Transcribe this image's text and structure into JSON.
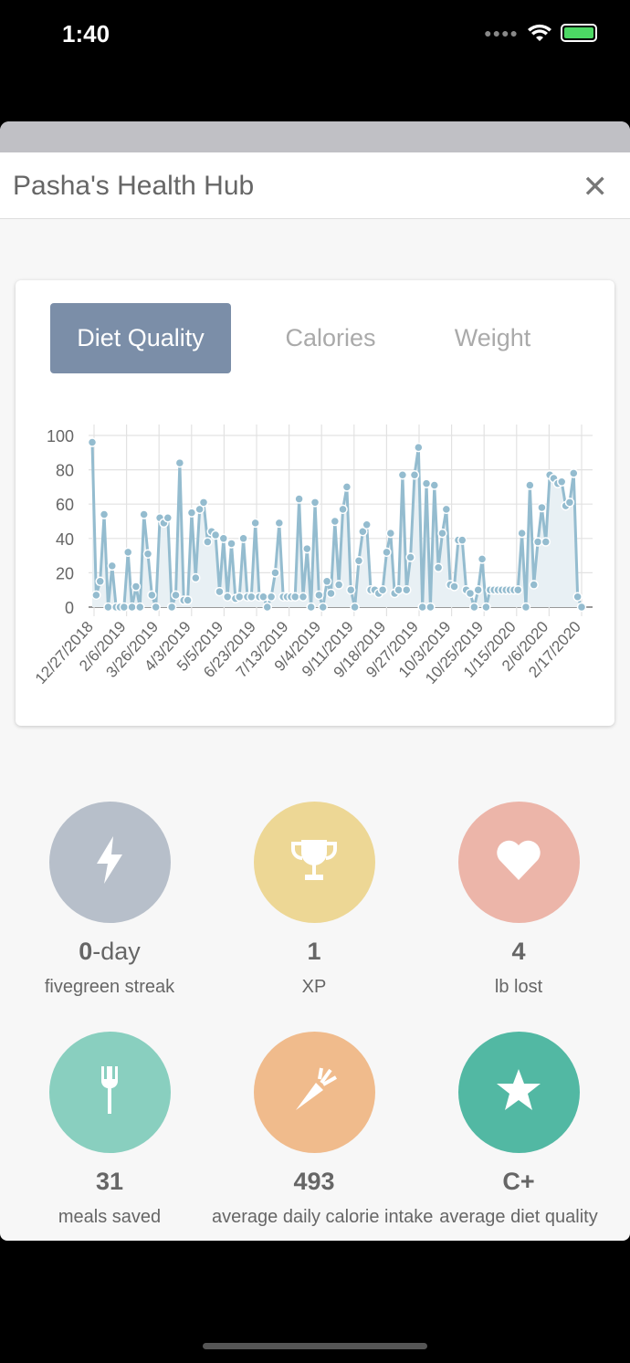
{
  "status_bar": {
    "time": "1:40"
  },
  "header": {
    "title": "Pasha's Health Hub",
    "close_icon": "close-icon"
  },
  "tabs": [
    {
      "label": "Diet Quality",
      "active": true
    },
    {
      "label": "Calories"
    },
    {
      "label": "Weight"
    }
  ],
  "colors": {
    "accent": "#7b8ea8",
    "line": "#94bccf"
  },
  "chart_data": {
    "type": "line",
    "title": "Diet Quality",
    "ylim": [
      0,
      100
    ],
    "yticks": [
      0,
      20,
      40,
      60,
      80,
      100
    ],
    "xticks": [
      "12/27/2018",
      "2/6/2019",
      "3/26/2019",
      "4/3/2019",
      "5/5/2019",
      "6/23/2019",
      "7/13/2019",
      "9/4/2019",
      "9/11/2019",
      "9/18/2019",
      "9/27/2019",
      "10/3/2019",
      "10/25/2019",
      "1/15/2020",
      "2/6/2020",
      "2/17/2020"
    ],
    "values": [
      96,
      7,
      15,
      54,
      0,
      24,
      0,
      0,
      0,
      32,
      0,
      12,
      0,
      54,
      31,
      7,
      0,
      52,
      49,
      52,
      0,
      7,
      84,
      4,
      4,
      55,
      17,
      57,
      61,
      38,
      44,
      42,
      9,
      40,
      6,
      37,
      5,
      6,
      40,
      6,
      6,
      49,
      6,
      6,
      0,
      6,
      20,
      49,
      6,
      6,
      6,
      6,
      63,
      6,
      34,
      0,
      61,
      7,
      0,
      15,
      8,
      50,
      13,
      57,
      70,
      10,
      0,
      27,
      44,
      48,
      10,
      10,
      8,
      10,
      32,
      43,
      8,
      10,
      77,
      10,
      29,
      77,
      93,
      0,
      72,
      0,
      71,
      23,
      43,
      57,
      13,
      12,
      39,
      39,
      10,
      8,
      0,
      10,
      28,
      0,
      10,
      10,
      10,
      10,
      10,
      10,
      10,
      10,
      43,
      0,
      71,
      13,
      38,
      58,
      38,
      77,
      75,
      72,
      73,
      59,
      61,
      78,
      6,
      0
    ]
  },
  "stats": [
    {
      "icon": "lightning-icon",
      "value": "0",
      "unit": "-day",
      "label": "fivegreen streak",
      "color": "#b7bfca"
    },
    {
      "icon": "trophy-icon",
      "value": "1",
      "unit": "",
      "label": "XP",
      "color": "#edd795"
    },
    {
      "icon": "heart-icon",
      "value": "4",
      "unit": "",
      "label": "lb lost",
      "color": "#ecb5a9"
    },
    {
      "icon": "fork-icon",
      "value": "31",
      "unit": "",
      "label": "meals saved",
      "color": "#89cfbf"
    },
    {
      "icon": "carrot-icon",
      "value": "493",
      "unit": "",
      "label": "average daily calorie intake",
      "color": "#f0bb8c"
    },
    {
      "icon": "star-icon",
      "value": "C+",
      "unit": "",
      "label": "average diet quality",
      "color": "#52b8a3"
    }
  ]
}
